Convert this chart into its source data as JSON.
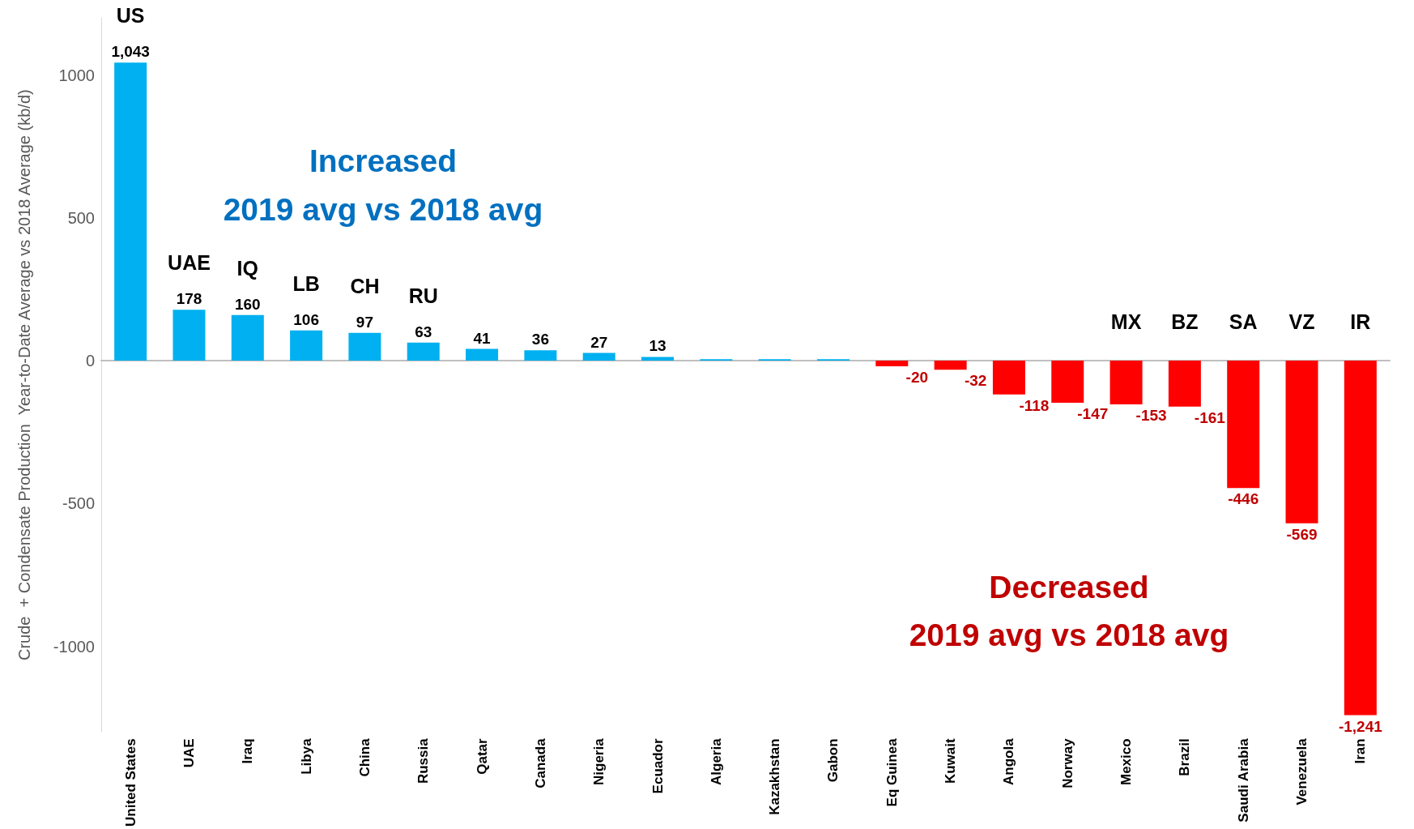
{
  "chart_data": {
    "type": "bar",
    "ylabel": "Crude  + Condensate Production  Year-to-Date Average vs 2018 Average (kb/d)",
    "categories": [
      "United States",
      "UAE",
      "Iraq",
      "Libya",
      "China",
      "Russia",
      "Qatar",
      "Canada",
      "Nigeria",
      "Ecuador",
      "Algeria",
      "Kazakhstan",
      "Gabon",
      "Eq Guinea",
      "Kuwait",
      "Angola",
      "Norway",
      "Mexico",
      "Brazil",
      "Saudi Arabia",
      "Venezuela",
      "Iran"
    ],
    "values": [
      1043,
      178,
      160,
      106,
      97,
      63,
      41,
      36,
      27,
      13,
      5,
      5,
      5,
      -20,
      -32,
      -118,
      -147,
      -153,
      -161,
      -446,
      -569,
      -1241
    ],
    "value_labels": [
      "1,043",
      "178",
      "160",
      "106",
      "97",
      "63",
      "41",
      "36",
      "27",
      "13",
      null,
      null,
      null,
      "-20",
      "-32",
      "-118",
      "-147",
      "-153",
      "-161",
      "-446",
      "-569",
      "-1,241"
    ],
    "colors": [
      "#00b0f0",
      "#00b0f0",
      "#00b0f0",
      "#00b0f0",
      "#00b0f0",
      "#00b0f0",
      "#00b0f0",
      "#00b0f0",
      "#00b0f0",
      "#00b0f0",
      "#00b0f0",
      "#00b0f0",
      "#00b0f0",
      "#ff0000",
      "#ff0000",
      "#ff0000",
      "#ff0000",
      "#ff0000",
      "#ff0000",
      "#ff0000",
      "#ff0000",
      "#ff0000"
    ],
    "ylim": [
      -1300,
      1200
    ],
    "yticks": [
      -1000,
      -500,
      0,
      500,
      1000
    ],
    "annotations": [
      "US",
      "UAE",
      "IQ",
      "LB",
      "CH",
      "RU",
      "MX",
      "BZ",
      "SA",
      "VZ",
      "IR",
      "Increased",
      "2019 avg vs 2018 avg",
      "Decreased",
      "2019 avg vs 2018 avg"
    ]
  }
}
